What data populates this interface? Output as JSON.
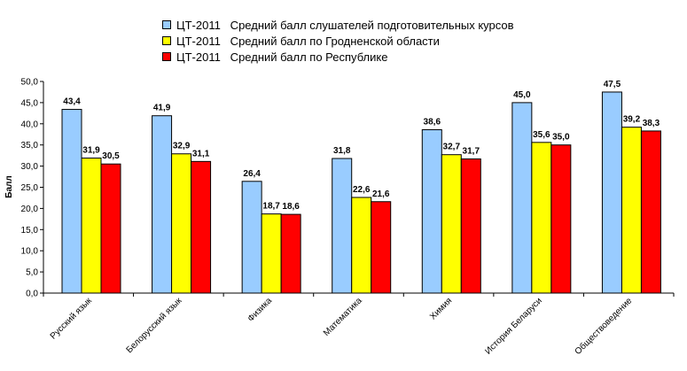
{
  "chart_data": {
    "type": "bar",
    "ylabel": "Балл",
    "xlabel": "",
    "ylim": [
      0,
      50
    ],
    "ystep": 5,
    "grid": false,
    "legend_position": "top",
    "categories": [
      "Русский язык",
      "Белорусский язык",
      "Физика",
      "Математика",
      "Химия",
      "История Беларуси",
      "Обществоведение"
    ],
    "series": [
      {
        "name": "ЦТ-2011   Средний балл слушателей подготовительных курсов",
        "color": "#99ccff",
        "values": [
          43.4,
          41.9,
          26.4,
          31.8,
          38.6,
          45.0,
          47.5
        ]
      },
      {
        "name": "ЦТ-2011   Средний балл по Гродненской области",
        "color": "#ffff00",
        "values": [
          31.9,
          32.9,
          18.7,
          22.6,
          32.7,
          35.6,
          39.2
        ]
      },
      {
        "name": "ЦТ-2011   Средний балл по Республике",
        "color": "#ff0000",
        "values": [
          30.5,
          31.1,
          18.6,
          21.6,
          31.7,
          35.0,
          38.3
        ]
      }
    ]
  }
}
